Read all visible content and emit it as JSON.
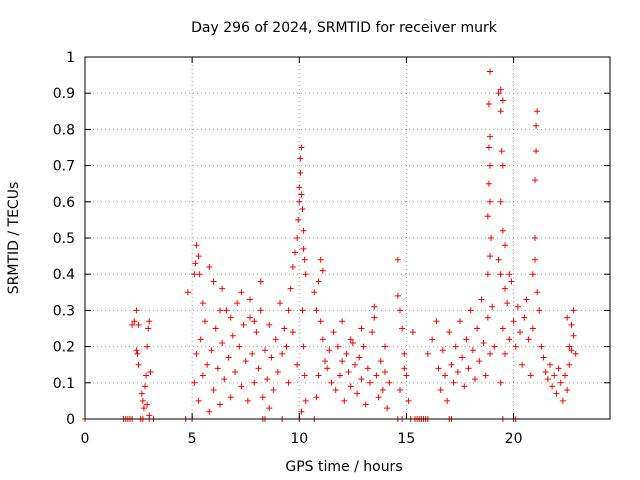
{
  "chart_data": {
    "type": "scatter",
    "title": "Day 296 of 2024, SRMTID for receiver murk",
    "xlabel": "GPS time / hours",
    "ylabel": "SRMTID / TECUs",
    "xlim": [
      0,
      24.5
    ],
    "ylim": [
      0,
      1
    ],
    "xticks": [
      0,
      5,
      10,
      15,
      20
    ],
    "yticks": [
      0,
      0.1,
      0.2,
      0.3,
      0.4,
      0.5,
      0.6,
      0.7,
      0.8,
      0.9,
      1
    ],
    "grid": true,
    "marker": "+",
    "series": [
      {
        "name": "SRMTID",
        "color": "#ff0000",
        "points": [
          [
            0.0,
            0.0
          ],
          [
            1.8,
            0.0
          ],
          [
            1.9,
            0.0
          ],
          [
            2.0,
            0.0
          ],
          [
            2.1,
            0.0
          ],
          [
            2.2,
            0.0
          ],
          [
            2.6,
            0.0
          ],
          [
            2.7,
            0.0
          ],
          [
            3.0,
            0.0
          ],
          [
            3.2,
            0.0
          ],
          [
            4.7,
            0.0
          ],
          [
            5.0,
            0.0
          ],
          [
            8.3,
            0.0
          ],
          [
            8.4,
            0.0
          ],
          [
            9.2,
            0.0
          ],
          [
            10.0,
            0.0
          ],
          [
            10.7,
            0.0
          ],
          [
            14.6,
            0.0
          ],
          [
            14.8,
            0.0
          ],
          [
            15.2,
            0.0
          ],
          [
            15.4,
            0.0
          ],
          [
            15.5,
            0.0
          ],
          [
            15.6,
            0.0
          ],
          [
            15.7,
            0.0
          ],
          [
            15.8,
            0.0
          ],
          [
            15.9,
            0.0
          ],
          [
            16.0,
            0.0
          ],
          [
            17.0,
            0.0
          ],
          [
            17.1,
            0.0
          ],
          [
            19.5,
            0.0
          ],
          [
            20.0,
            0.0
          ],
          [
            20.1,
            0.0
          ],
          [
            2.2,
            0.26
          ],
          [
            2.3,
            0.27
          ],
          [
            2.4,
            0.3
          ],
          [
            2.4,
            0.19
          ],
          [
            2.45,
            0.18
          ],
          [
            2.5,
            0.15
          ],
          [
            2.5,
            0.26
          ],
          [
            2.65,
            0.07
          ],
          [
            2.7,
            0.05
          ],
          [
            2.75,
            0.03
          ],
          [
            2.8,
            0.09
          ],
          [
            2.85,
            0.12
          ],
          [
            2.9,
            0.2
          ],
          [
            2.95,
            0.25
          ],
          [
            3.0,
            0.27
          ],
          [
            3.05,
            0.13
          ],
          [
            2.9,
            0.04
          ],
          [
            3.0,
            0.01
          ],
          [
            4.8,
            0.35
          ],
          [
            5.1,
            0.4
          ],
          [
            5.15,
            0.43
          ],
          [
            5.2,
            0.48
          ],
          [
            5.3,
            0.45
          ],
          [
            5.35,
            0.4
          ],
          [
            5.5,
            0.32
          ],
          [
            5.8,
            0.42
          ],
          [
            6.0,
            0.38
          ],
          [
            6.3,
            0.3
          ],
          [
            5.1,
            0.1
          ],
          [
            5.2,
            0.18
          ],
          [
            5.3,
            0.05
          ],
          [
            5.4,
            0.22
          ],
          [
            5.5,
            0.12
          ],
          [
            5.6,
            0.27
          ],
          [
            5.7,
            0.15
          ],
          [
            5.8,
            0.02
          ],
          [
            5.9,
            0.19
          ],
          [
            6.0,
            0.08
          ],
          [
            6.1,
            0.25
          ],
          [
            6.2,
            0.14
          ],
          [
            6.3,
            0.04
          ],
          [
            6.4,
            0.21
          ],
          [
            6.5,
            0.11
          ],
          [
            6.6,
            0.3
          ],
          [
            6.7,
            0.17
          ],
          [
            6.8,
            0.06
          ],
          [
            6.9,
            0.23
          ],
          [
            7.0,
            0.13
          ],
          [
            7.1,
            0.32
          ],
          [
            7.2,
            0.2
          ],
          [
            7.3,
            0.09
          ],
          [
            7.4,
            0.26
          ],
          [
            7.5,
            0.16
          ],
          [
            7.6,
            0.05
          ],
          [
            7.7,
            0.28
          ],
          [
            7.8,
            0.18
          ],
          [
            7.9,
            0.1
          ],
          [
            8.0,
            0.24
          ],
          [
            8.1,
            0.14
          ],
          [
            8.2,
            0.3
          ],
          [
            8.3,
            0.06
          ],
          [
            8.4,
            0.19
          ],
          [
            8.5,
            0.11
          ],
          [
            8.6,
            0.03
          ],
          [
            8.7,
            0.17
          ],
          [
            8.8,
            0.08
          ],
          [
            8.9,
            0.22
          ],
          [
            9.0,
            0.13
          ],
          [
            6.4,
            0.36
          ],
          [
            6.8,
            0.28
          ],
          [
            7.3,
            0.35
          ],
          [
            7.7,
            0.33
          ],
          [
            7.9,
            0.27
          ],
          [
            8.2,
            0.38
          ],
          [
            8.6,
            0.26
          ],
          [
            9.1,
            0.32
          ],
          [
            9.2,
            0.18
          ],
          [
            9.3,
            0.25
          ],
          [
            9.4,
            0.2
          ],
          [
            9.5,
            0.3
          ],
          [
            9.6,
            0.36
          ],
          [
            9.7,
            0.42
          ],
          [
            9.8,
            0.46
          ],
          [
            9.9,
            0.5
          ],
          [
            9.95,
            0.55
          ],
          [
            10.0,
            0.6
          ],
          [
            10.0,
            0.64
          ],
          [
            10.05,
            0.68
          ],
          [
            10.05,
            0.72
          ],
          [
            10.1,
            0.75
          ],
          [
            10.1,
            0.62
          ],
          [
            10.15,
            0.58
          ],
          [
            10.2,
            0.52
          ],
          [
            10.2,
            0.47
          ],
          [
            10.25,
            0.44
          ],
          [
            10.3,
            0.4
          ],
          [
            10.15,
            0.3
          ],
          [
            10.2,
            0.2
          ],
          [
            10.25,
            0.12
          ],
          [
            10.3,
            0.05
          ],
          [
            10.1,
            0.02
          ],
          [
            9.9,
            0.15
          ],
          [
            9.7,
            0.24
          ],
          [
            9.5,
            0.1
          ],
          [
            10.7,
            0.35
          ],
          [
            10.8,
            0.3
          ],
          [
            10.9,
            0.38
          ],
          [
            11.0,
            0.44
          ],
          [
            11.1,
            0.41
          ],
          [
            11.0,
            0.27
          ],
          [
            11.1,
            0.22
          ],
          [
            10.9,
            0.12
          ],
          [
            10.8,
            0.06
          ],
          [
            11.2,
            0.16
          ],
          [
            11.3,
            0.14
          ],
          [
            11.4,
            0.19
          ],
          [
            11.5,
            0.1
          ],
          [
            11.6,
            0.24
          ],
          [
            11.7,
            0.08
          ],
          [
            11.8,
            0.2
          ],
          [
            11.9,
            0.12
          ],
          [
            12.0,
            0.16
          ],
          [
            12.1,
            0.05
          ],
          [
            12.2,
            0.18
          ],
          [
            12.3,
            0.13
          ],
          [
            12.4,
            0.09
          ],
          [
            12.5,
            0.21
          ],
          [
            12.6,
            0.15
          ],
          [
            12.7,
            0.07
          ],
          [
            12.8,
            0.17
          ],
          [
            12.9,
            0.11
          ],
          [
            13.0,
            0.2
          ],
          [
            13.1,
            0.04
          ],
          [
            13.2,
            0.14
          ],
          [
            13.3,
            0.1
          ],
          [
            13.4,
            0.24
          ],
          [
            13.5,
            0.31
          ],
          [
            13.6,
            0.12
          ],
          [
            13.7,
            0.06
          ],
          [
            13.8,
            0.16
          ],
          [
            13.9,
            0.08
          ],
          [
            14.0,
            0.13
          ],
          [
            14.1,
            0.03
          ],
          [
            14.2,
            0.1
          ],
          [
            12.0,
            0.27
          ],
          [
            12.4,
            0.22
          ],
          [
            12.9,
            0.25
          ],
          [
            13.5,
            0.28
          ],
          [
            14.0,
            0.2
          ],
          [
            14.6,
            0.44
          ],
          [
            14.6,
            0.34
          ],
          [
            14.7,
            0.3
          ],
          [
            14.8,
            0.25
          ],
          [
            14.9,
            0.18
          ],
          [
            15.0,
            0.12
          ],
          [
            14.7,
            0.08
          ],
          [
            15.1,
            0.05
          ],
          [
            14.9,
            0.14
          ],
          [
            15.3,
            0.24
          ],
          [
            16.0,
            0.18
          ],
          [
            16.2,
            0.22
          ],
          [
            16.4,
            0.27
          ],
          [
            16.5,
            0.14
          ],
          [
            16.6,
            0.08
          ],
          [
            16.7,
            0.19
          ],
          [
            16.8,
            0.12
          ],
          [
            16.9,
            0.05
          ],
          [
            17.0,
            0.24
          ],
          [
            17.1,
            0.15
          ],
          [
            17.2,
            0.1
          ],
          [
            17.3,
            0.2
          ],
          [
            17.4,
            0.13
          ],
          [
            17.5,
            0.27
          ],
          [
            17.6,
            0.17
          ],
          [
            17.7,
            0.09
          ],
          [
            17.8,
            0.22
          ],
          [
            17.9,
            0.14
          ],
          [
            18.0,
            0.3
          ],
          [
            18.1,
            0.19
          ],
          [
            18.2,
            0.11
          ],
          [
            18.3,
            0.25
          ],
          [
            18.4,
            0.16
          ],
          [
            18.5,
            0.33
          ],
          [
            18.6,
            0.21
          ],
          [
            18.7,
            0.12
          ],
          [
            18.8,
            0.28
          ],
          [
            18.9,
            0.18
          ],
          [
            19.0,
            0.31
          ],
          [
            19.1,
            0.2
          ],
          [
            18.8,
            0.4
          ],
          [
            18.9,
            0.45
          ],
          [
            18.95,
            0.5
          ],
          [
            18.8,
            0.56
          ],
          [
            18.9,
            0.6
          ],
          [
            18.85,
            0.65
          ],
          [
            18.9,
            0.7
          ],
          [
            18.85,
            0.75
          ],
          [
            18.9,
            0.78
          ],
          [
            18.85,
            0.87
          ],
          [
            18.9,
            0.96
          ],
          [
            19.3,
            0.9
          ],
          [
            19.4,
            0.91
          ],
          [
            19.5,
            0.88
          ],
          [
            19.4,
            0.85
          ],
          [
            19.45,
            0.74
          ],
          [
            19.5,
            0.7
          ],
          [
            19.4,
            0.6
          ],
          [
            19.5,
            0.52
          ],
          [
            19.6,
            0.48
          ],
          [
            19.3,
            0.44
          ],
          [
            19.4,
            0.4
          ],
          [
            19.6,
            0.36
          ],
          [
            19.7,
            0.32
          ],
          [
            19.8,
            0.4
          ],
          [
            19.9,
            0.38
          ],
          [
            19.5,
            0.25
          ],
          [
            19.6,
            0.18
          ],
          [
            19.4,
            0.1
          ],
          [
            19.8,
            0.22
          ],
          [
            20.0,
            0.27
          ],
          [
            20.1,
            0.2
          ],
          [
            20.2,
            0.31
          ],
          [
            20.3,
            0.24
          ],
          [
            20.4,
            0.15
          ],
          [
            20.5,
            0.28
          ],
          [
            20.6,
            0.33
          ],
          [
            20.7,
            0.22
          ],
          [
            20.8,
            0.12
          ],
          [
            20.9,
            0.25
          ],
          [
            20.9,
            0.4
          ],
          [
            21.0,
            0.5
          ],
          [
            21.0,
            0.44
          ],
          [
            21.05,
            0.74
          ],
          [
            21.05,
            0.81
          ],
          [
            21.1,
            0.85
          ],
          [
            21.0,
            0.66
          ],
          [
            21.1,
            0.35
          ],
          [
            21.2,
            0.3
          ],
          [
            21.3,
            0.2
          ],
          [
            21.4,
            0.17
          ],
          [
            21.5,
            0.13
          ],
          [
            21.6,
            0.11
          ],
          [
            21.7,
            0.15
          ],
          [
            21.8,
            0.09
          ],
          [
            21.9,
            0.12
          ],
          [
            22.0,
            0.07
          ],
          [
            22.1,
            0.14
          ],
          [
            22.2,
            0.1
          ],
          [
            22.3,
            0.05
          ],
          [
            22.4,
            0.12
          ],
          [
            22.5,
            0.08
          ],
          [
            22.6,
            0.15
          ],
          [
            22.7,
            0.19
          ],
          [
            22.8,
            0.23
          ],
          [
            22.8,
            0.3
          ],
          [
            22.7,
            0.26
          ],
          [
            22.6,
            0.2
          ],
          [
            22.5,
            0.28
          ],
          [
            22.9,
            0.18
          ]
        ]
      }
    ]
  }
}
